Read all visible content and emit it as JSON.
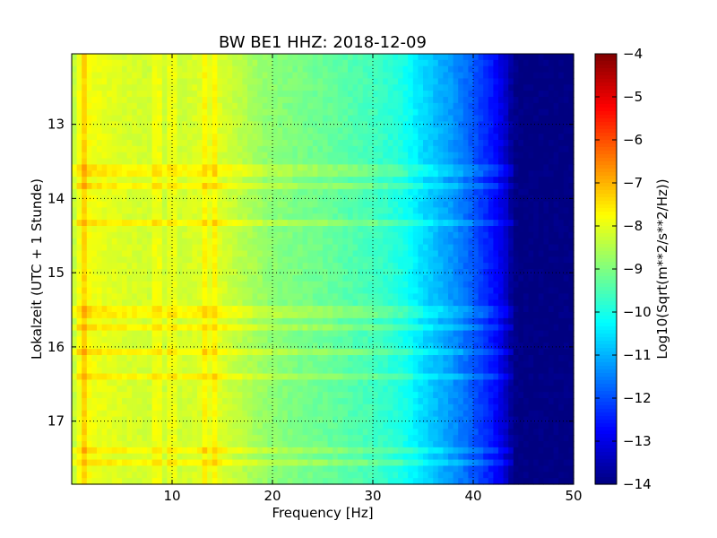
{
  "chart_data": {
    "type": "heatmap",
    "title": "BW BE1 HHZ: 2018-12-09",
    "xlabel": "Frequency [Hz]",
    "ylabel": "Lokalzeit (UTC + 1 Stunde)",
    "colorbar_label": "Log10(Sqrt(m**2/s**2/Hz))",
    "xlim": [
      0,
      50
    ],
    "ylim": [
      17.85,
      12.05
    ],
    "xticks": [
      10,
      20,
      30,
      40,
      50
    ],
    "yticks": [
      13,
      14,
      15,
      16,
      17
    ],
    "colorbar_range": [
      -14,
      -4
    ],
    "colorbar_ticks": [
      -4,
      -5,
      -6,
      -7,
      -8,
      -9,
      -10,
      -11,
      -12,
      -13,
      -14
    ],
    "colormap": "jet",
    "grid": true,
    "spectral_profile": {
      "frequency_hz": [
        0,
        1,
        2,
        5,
        10,
        14,
        20,
        25,
        30,
        33,
        35,
        38,
        40,
        42,
        43,
        44,
        45,
        50
      ],
      "log10_amplitude": [
        -8.6,
        -7.6,
        -7.9,
        -8.1,
        -8.3,
        -8.0,
        -8.9,
        -9.2,
        -9.6,
        -10.0,
        -10.6,
        -11.3,
        -11.9,
        -12.6,
        -13.1,
        -13.9,
        -14.0,
        -14.0
      ]
    },
    "vertical_stripes_hz": [
      1.2,
      8.6,
      10.0,
      13.4,
      14.2
    ],
    "horizontal_bands_hour": [
      13.6,
      13.7,
      13.8,
      14.35,
      15.5,
      15.6,
      15.75,
      16.1,
      16.4,
      17.4,
      17.55
    ]
  }
}
